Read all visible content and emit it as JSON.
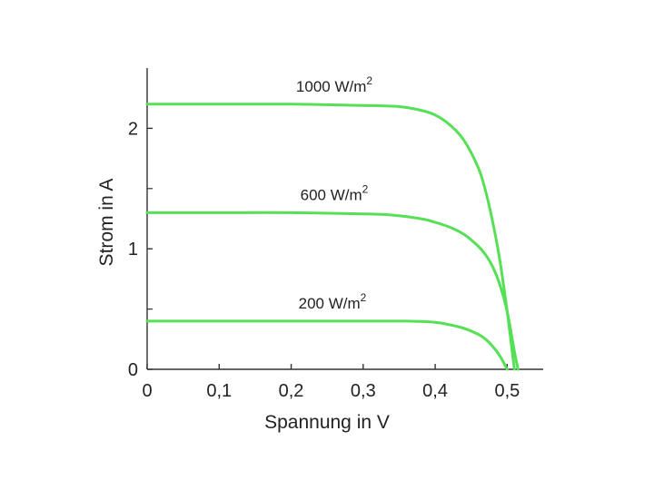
{
  "chart_data": {
    "type": "line",
    "xlabel": "Spannung in V",
    "ylabel": "Strom in A",
    "xlim": [
      0,
      0.55
    ],
    "ylim": [
      0,
      2.5
    ],
    "x_ticks": [
      {
        "value": 0,
        "label": "0"
      },
      {
        "value": 0.1,
        "label": "0,1"
      },
      {
        "value": 0.2,
        "label": "0,2"
      },
      {
        "value": 0.3,
        "label": "0,3"
      },
      {
        "value": 0.4,
        "label": "0,4"
      },
      {
        "value": 0.5,
        "label": "0,5"
      }
    ],
    "y_ticks": [
      {
        "value": 0,
        "label": "0"
      },
      {
        "value": 1,
        "label": "1"
      },
      {
        "value": 2,
        "label": "2"
      }
    ],
    "y_minor_ticks": [
      0.5,
      1.5
    ],
    "grid": false,
    "line_color": "#55e055",
    "series": [
      {
        "name": "1000 W/m",
        "name_sup": "2",
        "x": [
          0,
          0.1,
          0.2,
          0.3,
          0.35,
          0.38,
          0.4,
          0.42,
          0.44,
          0.46,
          0.47,
          0.48,
          0.49,
          0.5,
          0.51
        ],
        "y": [
          2.2,
          2.2,
          2.2,
          2.19,
          2.18,
          2.15,
          2.11,
          2.03,
          1.9,
          1.67,
          1.48,
          1.22,
          0.9,
          0.48,
          0
        ]
      },
      {
        "name": "600 W/m",
        "name_sup": "2",
        "x": [
          0,
          0.1,
          0.2,
          0.3,
          0.34,
          0.38,
          0.4,
          0.42,
          0.44,
          0.46,
          0.47,
          0.48,
          0.49,
          0.5,
          0.51,
          0.515
        ],
        "y": [
          1.3,
          1.3,
          1.3,
          1.29,
          1.28,
          1.25,
          1.22,
          1.18,
          1.12,
          1.02,
          0.95,
          0.85,
          0.7,
          0.48,
          0.15,
          0
        ]
      },
      {
        "name": "200 W/m",
        "name_sup": "2",
        "x": [
          0,
          0.1,
          0.2,
          0.3,
          0.36,
          0.4,
          0.42,
          0.44,
          0.46,
          0.47,
          0.48,
          0.49,
          0.5
        ],
        "y": [
          0.4,
          0.4,
          0.4,
          0.4,
          0.4,
          0.39,
          0.37,
          0.34,
          0.29,
          0.25,
          0.19,
          0.11,
          0
        ]
      }
    ]
  }
}
